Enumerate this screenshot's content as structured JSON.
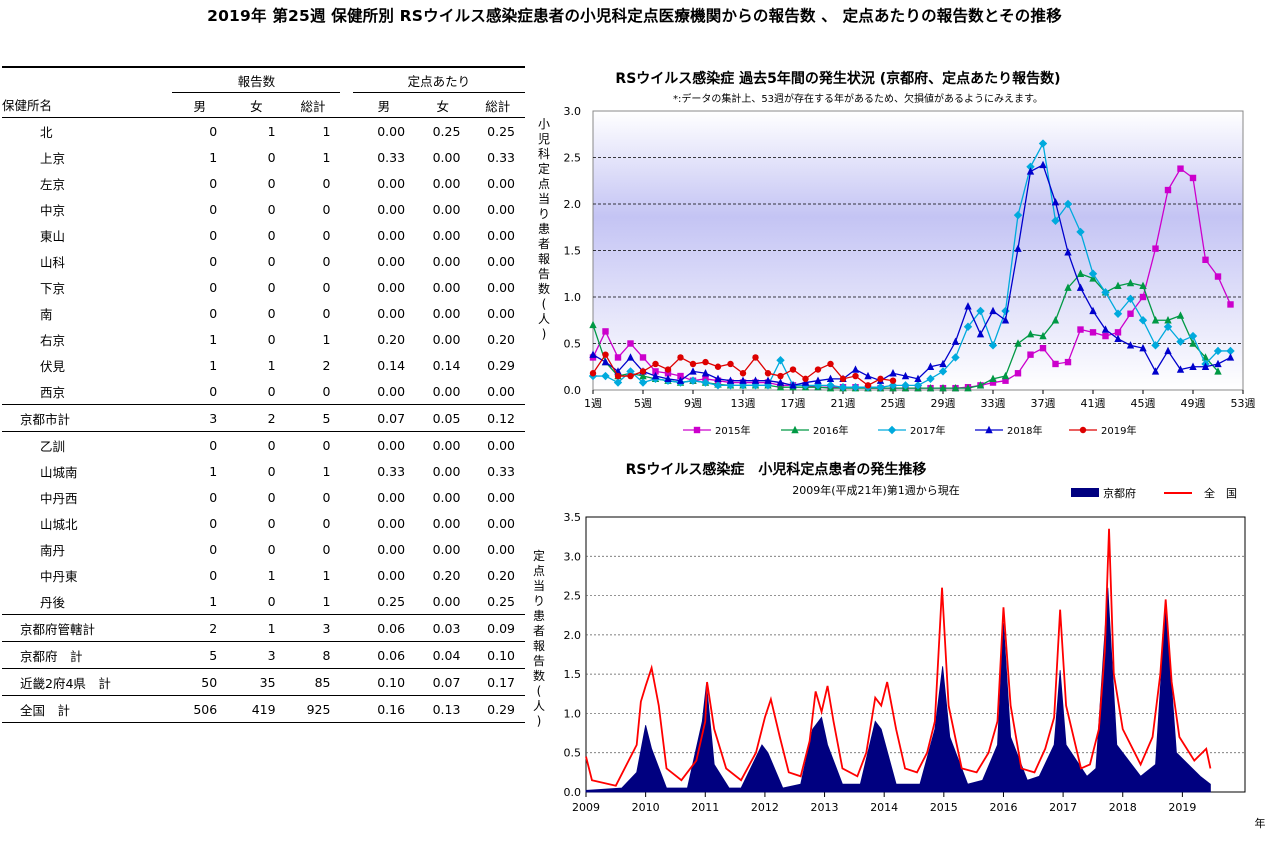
{
  "page": {
    "title": "2019年 第25週 保健所別 RSウイルス感染症患者の小児科定点医療機関からの報告数 、 定点あたりの報告数とその推移"
  },
  "table": {
    "group_headers": [
      "報告数",
      "定点あたり"
    ],
    "columns": [
      "保健所名",
      "男",
      "女",
      "総計",
      "男",
      "女",
      "総計"
    ],
    "rows": [
      {
        "name": "北",
        "m": "0",
        "f": "1",
        "t": "1",
        "rm": "0.00",
        "rf": "0.25",
        "rt": "0.25",
        "kind": "indent"
      },
      {
        "name": "上京",
        "m": "1",
        "f": "0",
        "t": "1",
        "rm": "0.33",
        "rf": "0.00",
        "rt": "0.33",
        "kind": "indent"
      },
      {
        "name": "左京",
        "m": "0",
        "f": "0",
        "t": "0",
        "rm": "0.00",
        "rf": "0.00",
        "rt": "0.00",
        "kind": "indent"
      },
      {
        "name": "中京",
        "m": "0",
        "f": "0",
        "t": "0",
        "rm": "0.00",
        "rf": "0.00",
        "rt": "0.00",
        "kind": "indent"
      },
      {
        "name": "東山",
        "m": "0",
        "f": "0",
        "t": "0",
        "rm": "0.00",
        "rf": "0.00",
        "rt": "0.00",
        "kind": "indent"
      },
      {
        "name": "山科",
        "m": "0",
        "f": "0",
        "t": "0",
        "rm": "0.00",
        "rf": "0.00",
        "rt": "0.00",
        "kind": "indent"
      },
      {
        "name": "下京",
        "m": "0",
        "f": "0",
        "t": "0",
        "rm": "0.00",
        "rf": "0.00",
        "rt": "0.00",
        "kind": "indent"
      },
      {
        "name": "南",
        "m": "0",
        "f": "0",
        "t": "0",
        "rm": "0.00",
        "rf": "0.00",
        "rt": "0.00",
        "kind": "indent"
      },
      {
        "name": "右京",
        "m": "1",
        "f": "0",
        "t": "1",
        "rm": "0.20",
        "rf": "0.00",
        "rt": "0.20",
        "kind": "indent"
      },
      {
        "name": "伏見",
        "m": "1",
        "f": "1",
        "t": "2",
        "rm": "0.14",
        "rf": "0.14",
        "rt": "0.29",
        "kind": "indent"
      },
      {
        "name": "西京",
        "m": "0",
        "f": "0",
        "t": "0",
        "rm": "0.00",
        "rf": "0.00",
        "rt": "0.00",
        "kind": "indent"
      },
      {
        "name": "京都市計",
        "m": "3",
        "f": "2",
        "t": "5",
        "rm": "0.07",
        "rf": "0.05",
        "rt": "0.12",
        "kind": "subtotal"
      },
      {
        "name": "乙訓",
        "m": "0",
        "f": "0",
        "t": "0",
        "rm": "0.00",
        "rf": "0.00",
        "rt": "0.00",
        "kind": "indent"
      },
      {
        "name": "山城南",
        "m": "1",
        "f": "0",
        "t": "1",
        "rm": "0.33",
        "rf": "0.00",
        "rt": "0.33",
        "kind": "indent"
      },
      {
        "name": "中丹西",
        "m": "0",
        "f": "0",
        "t": "0",
        "rm": "0.00",
        "rf": "0.00",
        "rt": "0.00",
        "kind": "indent"
      },
      {
        "name": "山城北",
        "m": "0",
        "f": "0",
        "t": "0",
        "rm": "0.00",
        "rf": "0.00",
        "rt": "0.00",
        "kind": "indent"
      },
      {
        "name": "南丹",
        "m": "0",
        "f": "0",
        "t": "0",
        "rm": "0.00",
        "rf": "0.00",
        "rt": "0.00",
        "kind": "indent"
      },
      {
        "name": "中丹東",
        "m": "0",
        "f": "1",
        "t": "1",
        "rm": "0.00",
        "rf": "0.20",
        "rt": "0.20",
        "kind": "indent"
      },
      {
        "name": "丹後",
        "m": "1",
        "f": "0",
        "t": "1",
        "rm": "0.25",
        "rf": "0.00",
        "rt": "0.25",
        "kind": "indent"
      },
      {
        "name": "京都府管轄計",
        "m": "2",
        "f": "1",
        "t": "3",
        "rm": "0.06",
        "rf": "0.03",
        "rt": "0.09",
        "kind": "subtotal"
      },
      {
        "name": "京都府　計",
        "m": "5",
        "f": "3",
        "t": "8",
        "rm": "0.06",
        "rf": "0.04",
        "rt": "0.10",
        "kind": "subtotal"
      },
      {
        "name": "近畿2府4県　計",
        "m": "50",
        "f": "35",
        "t": "85",
        "rm": "0.10",
        "rf": "0.07",
        "rt": "0.17",
        "kind": "subtotal"
      },
      {
        "name": "全国　計",
        "m": "506",
        "f": "419",
        "t": "925",
        "rm": "0.16",
        "rf": "0.13",
        "rt": "0.29",
        "kind": "subtotal"
      }
    ]
  },
  "chart_data": [
    {
      "type": "line",
      "title": "RSウイルス感染症 過去5年間の発生状況 (京都府、定点あたり報告数)",
      "subtitle": "*:データの集計上、53週が存在する年があるため、欠損値があるようにみえます。",
      "xlabel": "",
      "ylabel": "小児科定点当り患者報告数(人)",
      "x_tick_labels": [
        "1週",
        "5週",
        "9週",
        "13週",
        "17週",
        "21週",
        "25週",
        "29週",
        "33週",
        "37週",
        "41週",
        "45週",
        "49週",
        "53週"
      ],
      "y_tick_labels": [
        "0.0",
        "0.5",
        "1.0",
        "1.5",
        "2.0",
        "2.5",
        "3.0"
      ],
      "xlim": [
        1,
        53
      ],
      "ylim": [
        0,
        3.0
      ],
      "legend_position": "bottom",
      "series": [
        {
          "name": "2015年",
          "color": "#cc00cc",
          "marker": "square",
          "values": [
            0.35,
            0.63,
            0.35,
            0.5,
            0.35,
            0.2,
            0.18,
            0.15,
            0.1,
            0.12,
            0.1,
            0.08,
            0.08,
            0.08,
            0.08,
            0.05,
            0.05,
            0.05,
            0.03,
            0.03,
            0.03,
            0.03,
            0.02,
            0.02,
            0.02,
            0.02,
            0.02,
            0.02,
            0.02,
            0.02,
            0.03,
            0.05,
            0.08,
            0.1,
            0.18,
            0.38,
            0.45,
            0.28,
            0.3,
            0.65,
            0.62,
            0.58,
            0.62,
            0.82,
            1.0,
            1.52,
            2.15,
            2.38,
            2.28,
            1.4,
            1.22,
            0.92
          ]
        },
        {
          "name": "2016年",
          "color": "#009944",
          "marker": "triangle",
          "values": [
            0.7,
            0.3,
            0.15,
            0.18,
            0.15,
            0.12,
            0.1,
            0.08,
            0.1,
            0.08,
            0.06,
            0.05,
            0.05,
            0.05,
            0.05,
            0.03,
            0.03,
            0.03,
            0.03,
            0.02,
            0.02,
            0.02,
            0.02,
            0.02,
            0.02,
            0.02,
            0.02,
            0.02,
            0.02,
            0.02,
            0.02,
            0.05,
            0.12,
            0.15,
            0.5,
            0.6,
            0.58,
            0.75,
            1.1,
            1.25,
            1.2,
            1.05,
            1.12,
            1.15,
            1.12,
            0.75,
            0.75,
            0.8,
            0.5,
            0.35,
            0.2
          ]
        },
        {
          "name": "2017年",
          "color": "#00aadd",
          "marker": "diamond",
          "values": [
            0.15,
            0.15,
            0.08,
            0.2,
            0.08,
            0.12,
            0.1,
            0.08,
            0.1,
            0.08,
            0.05,
            0.05,
            0.05,
            0.05,
            0.05,
            0.32,
            0.05,
            0.05,
            0.05,
            0.05,
            0.03,
            0.03,
            0.03,
            0.03,
            0.05,
            0.05,
            0.05,
            0.12,
            0.2,
            0.35,
            0.68,
            0.85,
            0.48,
            0.85,
            1.88,
            2.4,
            2.65,
            1.82,
            2.0,
            1.7,
            1.25,
            1.05,
            0.82,
            0.98,
            0.75,
            0.48,
            0.68,
            0.52,
            0.58,
            0.28,
            0.42,
            0.42
          ]
        },
        {
          "name": "2018年",
          "color": "#0000cc",
          "marker": "triangle",
          "values": [
            0.38,
            0.3,
            0.2,
            0.35,
            0.2,
            0.15,
            0.12,
            0.1,
            0.2,
            0.18,
            0.12,
            0.1,
            0.1,
            0.1,
            0.1,
            0.08,
            0.05,
            0.08,
            0.1,
            0.12,
            0.12,
            0.22,
            0.15,
            0.1,
            0.18,
            0.15,
            0.12,
            0.25,
            0.28,
            0.52,
            0.9,
            0.6,
            0.85,
            0.75,
            1.52,
            2.35,
            2.42,
            2.02,
            1.48,
            1.1,
            0.85,
            0.65,
            0.55,
            0.48,
            0.45,
            0.2,
            0.42,
            0.22,
            0.25,
            0.25,
            0.28,
            0.35
          ]
        },
        {
          "name": "2019年",
          "color": "#dd0000",
          "marker": "circle",
          "values": [
            0.18,
            0.38,
            0.15,
            0.15,
            0.2,
            0.28,
            0.22,
            0.35,
            0.28,
            0.3,
            0.25,
            0.28,
            0.18,
            0.35,
            0.18,
            0.15,
            0.22,
            0.12,
            0.22,
            0.28,
            0.12,
            0.15,
            0.05,
            0.12,
            0.1
          ]
        }
      ]
    },
    {
      "type": "area",
      "title": "RSウイルス感染症　小児科定点患者の発生推移",
      "subtitle": "2009年(平成21年)第1週から現在",
      "xlabel": "年",
      "ylabel": "定点当り患者報告数(人)",
      "x_tick_labels": [
        "2009",
        "2010",
        "2011",
        "2012",
        "2013",
        "2014",
        "2015",
        "2016",
        "2017",
        "2018",
        "2019"
      ],
      "y_tick_labels": [
        "0.0",
        "0.5",
        "1.0",
        "1.5",
        "2.0",
        "2.5",
        "3.0",
        "3.5"
      ],
      "xlim": [
        2009,
        2020.05
      ],
      "ylim": [
        0,
        3.5
      ],
      "legend_position": "top-right",
      "series": [
        {
          "name": "京都府",
          "color": "#000080",
          "kind": "area",
          "points": [
            [
              2009.0,
              0.02
            ],
            [
              2009.6,
              0.05
            ],
            [
              2009.85,
              0.25
            ],
            [
              2010.0,
              0.85
            ],
            [
              2010.1,
              0.55
            ],
            [
              2010.35,
              0.05
            ],
            [
              2010.7,
              0.05
            ],
            [
              2010.95,
              0.9
            ],
            [
              2011.02,
              1.38
            ],
            [
              2011.15,
              0.35
            ],
            [
              2011.4,
              0.05
            ],
            [
              2011.6,
              0.05
            ],
            [
              2011.95,
              0.6
            ],
            [
              2012.05,
              0.5
            ],
            [
              2012.3,
              0.05
            ],
            [
              2012.6,
              0.1
            ],
            [
              2012.8,
              0.8
            ],
            [
              2012.95,
              0.95
            ],
            [
              2013.05,
              0.6
            ],
            [
              2013.3,
              0.1
            ],
            [
              2013.6,
              0.1
            ],
            [
              2013.85,
              0.9
            ],
            [
              2013.95,
              0.8
            ],
            [
              2014.2,
              0.1
            ],
            [
              2014.6,
              0.1
            ],
            [
              2014.85,
              0.8
            ],
            [
              2014.98,
              1.6
            ],
            [
              2015.1,
              0.7
            ],
            [
              2015.4,
              0.1
            ],
            [
              2015.65,
              0.15
            ],
            [
              2015.9,
              0.6
            ],
            [
              2016.0,
              2.15
            ],
            [
              2016.12,
              0.7
            ],
            [
              2016.4,
              0.15
            ],
            [
              2016.6,
              0.2
            ],
            [
              2016.85,
              0.6
            ],
            [
              2016.95,
              1.55
            ],
            [
              2017.05,
              0.6
            ],
            [
              2017.4,
              0.2
            ],
            [
              2017.55,
              0.3
            ],
            [
              2017.75,
              2.6
            ],
            [
              2017.9,
              0.6
            ],
            [
              2018.3,
              0.2
            ],
            [
              2018.55,
              0.35
            ],
            [
              2018.72,
              2.4
            ],
            [
              2018.9,
              0.5
            ],
            [
              2019.3,
              0.2
            ],
            [
              2019.47,
              0.1
            ]
          ]
        },
        {
          "name": "全　国",
          "color": "#ff0000",
          "kind": "line",
          "points": [
            [
              2009.0,
              0.45
            ],
            [
              2009.1,
              0.15
            ],
            [
              2009.5,
              0.08
            ],
            [
              2009.85,
              0.6
            ],
            [
              2009.92,
              1.15
            ],
            [
              2010.0,
              1.35
            ],
            [
              2010.1,
              1.58
            ],
            [
              2010.22,
              1.1
            ],
            [
              2010.35,
              0.3
            ],
            [
              2010.6,
              0.15
            ],
            [
              2010.85,
              0.4
            ],
            [
              2011.0,
              0.9
            ],
            [
              2011.03,
              1.4
            ],
            [
              2011.15,
              0.8
            ],
            [
              2011.35,
              0.3
            ],
            [
              2011.6,
              0.15
            ],
            [
              2011.85,
              0.5
            ],
            [
              2012.0,
              0.95
            ],
            [
              2012.1,
              1.18
            ],
            [
              2012.25,
              0.7
            ],
            [
              2012.4,
              0.25
            ],
            [
              2012.6,
              0.2
            ],
            [
              2012.75,
              0.65
            ],
            [
              2012.85,
              1.28
            ],
            [
              2012.95,
              1.02
            ],
            [
              2013.05,
              1.35
            ],
            [
              2013.15,
              0.9
            ],
            [
              2013.3,
              0.3
            ],
            [
              2013.55,
              0.2
            ],
            [
              2013.7,
              0.5
            ],
            [
              2013.85,
              1.2
            ],
            [
              2013.95,
              1.1
            ],
            [
              2014.05,
              1.4
            ],
            [
              2014.2,
              0.8
            ],
            [
              2014.35,
              0.3
            ],
            [
              2014.55,
              0.25
            ],
            [
              2014.72,
              0.5
            ],
            [
              2014.85,
              0.9
            ],
            [
              2014.97,
              2.6
            ],
            [
              2015.08,
              1.1
            ],
            [
              2015.3,
              0.3
            ],
            [
              2015.55,
              0.25
            ],
            [
              2015.75,
              0.5
            ],
            [
              2015.9,
              0.9
            ],
            [
              2016.0,
              2.35
            ],
            [
              2016.12,
              1.1
            ],
            [
              2016.3,
              0.3
            ],
            [
              2016.52,
              0.25
            ],
            [
              2016.7,
              0.55
            ],
            [
              2016.85,
              0.95
            ],
            [
              2016.95,
              2.32
            ],
            [
              2017.05,
              1.1
            ],
            [
              2017.3,
              0.3
            ],
            [
              2017.45,
              0.35
            ],
            [
              2017.6,
              0.8
            ],
            [
              2017.7,
              1.8
            ],
            [
              2017.77,
              3.35
            ],
            [
              2017.85,
              1.5
            ],
            [
              2018.0,
              0.8
            ],
            [
              2018.3,
              0.35
            ],
            [
              2018.5,
              0.7
            ],
            [
              2018.63,
              1.5
            ],
            [
              2018.72,
              2.45
            ],
            [
              2018.82,
              1.4
            ],
            [
              2018.95,
              0.7
            ],
            [
              2019.2,
              0.4
            ],
            [
              2019.4,
              0.55
            ],
            [
              2019.47,
              0.3
            ]
          ]
        }
      ]
    }
  ]
}
